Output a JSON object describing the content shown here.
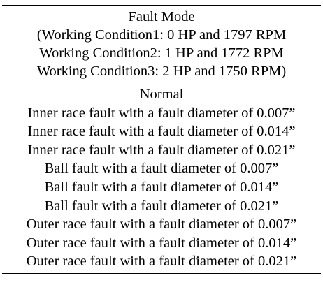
{
  "header": {
    "lines": [
      "Fault Mode",
      "(Working Condition1: 0 HP and 1797 RPM",
      "Working Condition2: 1 HP and 1772 RPM",
      "Working Condition3: 2 HP and 1750 RPM)"
    ]
  },
  "rows": [
    "Normal",
    "Inner race fault with a fault diameter of 0.007”",
    "Inner race fault with a fault diameter of 0.014”",
    "Inner race fault with a fault diameter of 0.021”",
    "Ball fault with a fault diameter of 0.007”",
    "Ball fault with a fault diameter of 0.014”",
    "Ball fault with a fault diameter of 0.021”",
    "Outer race fault with a fault diameter of 0.007”",
    "Outer race fault with a fault diameter of 0.014”",
    "Outer race fault with a fault diameter of 0.021”"
  ]
}
